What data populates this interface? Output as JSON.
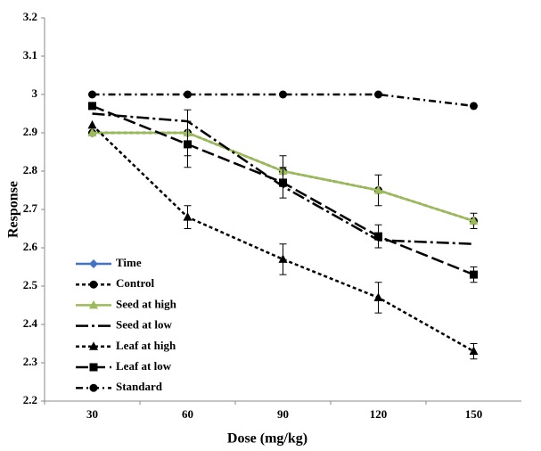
{
  "chart_data": {
    "type": "line",
    "x_label": "Dose (mg/kg)",
    "y_label": "Response",
    "categories": [
      "30",
      "60",
      "90",
      "120",
      "150"
    ],
    "ylim": [
      2.2,
      3.2
    ],
    "yticks": [
      2.2,
      2.3,
      2.4,
      2.5,
      2.6,
      2.7,
      2.8,
      2.9,
      3,
      3.1,
      3.2
    ],
    "grid": false,
    "legend": "lower left",
    "series": [
      {
        "name": "Time",
        "color": "#4472c4",
        "dash": "none",
        "marker": "diamond",
        "values": [
          null,
          null,
          null,
          null,
          null
        ]
      },
      {
        "name": "Control",
        "color": "#000000",
        "dash": "4,3",
        "marker": "circle",
        "values": [
          2.9,
          2.9,
          2.8,
          2.75,
          2.67
        ],
        "errors": [
          null,
          0.06,
          0.04,
          0.04,
          0.02
        ]
      },
      {
        "name": "Seed at high",
        "color": "#9bbb59",
        "dash": "none",
        "marker": "triangle",
        "values": [
          2.9,
          2.9,
          2.8,
          2.75,
          2.67
        ]
      },
      {
        "name": "Seed at low",
        "color": "#000000",
        "dash": "14,4,3,4",
        "marker": "none",
        "values": [
          2.95,
          2.93,
          2.76,
          2.62,
          2.61
        ]
      },
      {
        "name": "Leaf at high",
        "color": "#000000",
        "dash": "4,3",
        "marker": "triangle",
        "values": [
          2.92,
          2.68,
          2.57,
          2.47,
          2.33
        ],
        "errors": [
          null,
          0.03,
          0.04,
          0.04,
          0.02
        ]
      },
      {
        "name": "Leaf at low",
        "color": "#000000",
        "dash": "14,5",
        "marker": "square",
        "values": [
          2.97,
          2.87,
          2.77,
          2.63,
          2.53
        ],
        "errors": [
          null,
          0.06,
          0.04,
          0.03,
          0.02
        ]
      },
      {
        "name": "Standard",
        "color": "#000000",
        "dash": "8,4,2,4",
        "marker": "circle",
        "values": [
          3,
          3,
          3,
          3,
          2.97
        ]
      }
    ]
  }
}
